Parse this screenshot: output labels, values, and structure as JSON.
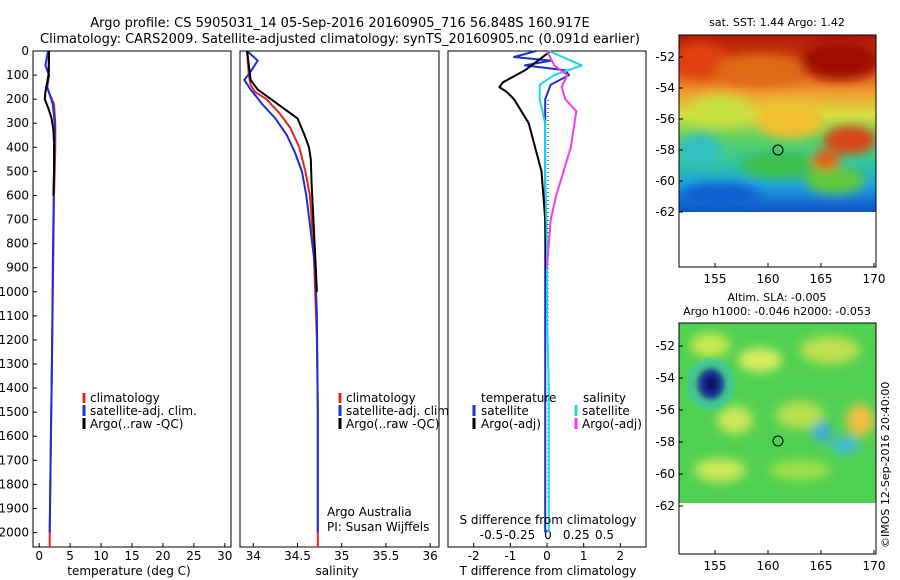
{
  "title": {
    "line1": "Argo profile: CS 5905031_14 05-Sep-2016 20160905_716 56.848S 160.917E",
    "line2": "Climatology: CARS2009. Satellite-adjusted climatology: synTS_20160905.nc (0.091d earlier)"
  },
  "colors": {
    "climatology": "#e8241c",
    "satellite": "#1a2fd6",
    "argo": "#000000",
    "salinity_satellite": "#19d8e0",
    "salinity_argo": "#f03cf0"
  },
  "depth_ticks": [
    0,
    100,
    200,
    300,
    400,
    500,
    600,
    700,
    800,
    900,
    1000,
    1100,
    1200,
    1300,
    1400,
    1500,
    1600,
    1700,
    1800,
    1900,
    2000
  ],
  "temp_ticks": [
    "0",
    "5",
    "10",
    "15",
    "20",
    "25",
    "30"
  ],
  "sal_ticks": [
    "34",
    "34.5",
    "35",
    "35.5",
    "36"
  ],
  "diff_top_ticks": [
    "-0.5",
    "-0.25",
    "0",
    "0.25",
    "0.5"
  ],
  "diff_bottom_ticks": [
    "-2",
    "-1",
    "0",
    "1",
    "2"
  ],
  "legend1": [
    "climatology",
    "satellite-adj. clim.",
    "Argo(..raw -QC)"
  ],
  "legend3": {
    "temp_head": "temperature",
    "sal_head": "salinity",
    "satellite": "satellite",
    "argo_adj": "Argo(-adj)"
  },
  "labels": {
    "temperature": "temperature (deg C)",
    "salinity": "salinity",
    "s_diff": "S difference from climatology",
    "t_diff": "T difference from climatology",
    "argo_aus": "Argo Australia",
    "pi": "PI: Susan Wijffels"
  },
  "map1": {
    "title": "sat. SST: 1.44  Argo: 1.42",
    "lat_ticks": [
      "-52",
      "-54",
      "-56",
      "-58",
      "-60",
      "-62"
    ],
    "lon_ticks": [
      "155",
      "160",
      "165",
      "170"
    ]
  },
  "map2": {
    "title1": "Altim. SLA: -0.005",
    "title2": "Argo h1000: -0.046  h2000: -0.053",
    "lat_ticks": [
      "-52",
      "-54",
      "-56",
      "-58",
      "-60",
      "-62"
    ],
    "lon_ticks": [
      "155",
      "160",
      "165",
      "170"
    ]
  },
  "credit": "©IMOS 12-Sep-2016 20:40:00",
  "chart_data": [
    {
      "type": "line",
      "xlabel": "temperature (deg C)",
      "ylabel": "",
      "xlim": [
        -1,
        31
      ],
      "ylim": [
        2060,
        0
      ],
      "y_reversed": true,
      "series": [
        {
          "name": "climatology",
          "x": [
            1.5,
            1.6,
            1.2,
            2.4,
            2.6,
            2.6,
            2.5,
            2.4,
            2.3,
            2.2,
            2.1,
            2.0,
            1.9,
            1.8,
            1.7,
            1.7
          ],
          "y": [
            0,
            80,
            150,
            220,
            300,
            400,
            500,
            600,
            800,
            1000,
            1200,
            1400,
            1600,
            1800,
            2000,
            2060
          ]
        },
        {
          "name": "satellite-adj. clim.",
          "x": [
            1.4,
            1.0,
            1.6,
            1.3,
            2.2,
            2.5,
            2.5,
            2.4,
            2.3,
            2.2,
            2.1,
            2.0,
            1.9,
            1.8,
            1.7
          ],
          "y": [
            0,
            60,
            100,
            150,
            220,
            300,
            400,
            500,
            700,
            900,
            1200,
            1400,
            1600,
            1800,
            2000
          ]
        },
        {
          "name": "Argo(..raw -QC)",
          "x": [
            1.6,
            1.5,
            1.0,
            0.9,
            1.5,
            2.0,
            2.3,
            2.4,
            2.4,
            2.3
          ],
          "y": [
            0,
            100,
            170,
            200,
            240,
            280,
            330,
            380,
            500,
            600
          ]
        }
      ]
    },
    {
      "type": "line",
      "xlabel": "salinity",
      "ylabel": "",
      "xlim": [
        33.85,
        36.1
      ],
      "ylim": [
        2060,
        0
      ],
      "y_reversed": true,
      "series": [
        {
          "name": "climatology",
          "x": [
            33.93,
            33.95,
            33.97,
            34.02,
            34.15,
            34.3,
            34.42,
            34.52,
            34.59,
            34.64,
            34.68,
            34.7,
            34.72,
            34.73,
            34.73,
            34.73
          ],
          "y": [
            0,
            100,
            140,
            170,
            200,
            260,
            320,
            400,
            500,
            600,
            800,
            1000,
            1200,
            1500,
            1800,
            2060
          ]
        },
        {
          "name": "satellite-adj. clim.",
          "x": [
            33.93,
            34.05,
            33.98,
            33.9,
            33.97,
            34.1,
            34.25,
            34.38,
            34.47,
            34.55,
            34.6,
            34.65,
            34.7,
            34.72,
            34.73,
            34.73
          ],
          "y": [
            0,
            40,
            80,
            120,
            160,
            220,
            280,
            350,
            420,
            500,
            600,
            750,
            900,
            1100,
            1500,
            2000
          ]
        },
        {
          "name": "Argo(..raw -QC)",
          "x": [
            33.93,
            33.97,
            34.05,
            34.2,
            34.35,
            34.5,
            34.58,
            34.63,
            34.65,
            34.66,
            34.68,
            34.7,
            34.72
          ],
          "y": [
            0,
            120,
            160,
            200,
            240,
            280,
            350,
            400,
            450,
            550,
            700,
            850,
            1000
          ]
        }
      ]
    },
    {
      "type": "line",
      "xlabel": "T difference from climatology",
      "ylabel": "",
      "xlim": [
        -2.7,
        2.7
      ],
      "ylim": [
        2060,
        0
      ],
      "y_reversed": true,
      "series": [
        {
          "name": "temperature satellite",
          "x": [
            -0.3,
            -0.9,
            0.1,
            -0.6,
            0.5,
            0.6,
            0.1,
            -0.05,
            -0.05,
            -0.05,
            -0.05,
            -0.05,
            -0.05,
            -0.05
          ],
          "y": [
            0,
            25,
            40,
            60,
            80,
            100,
            140,
            200,
            300,
            500,
            800,
            1200,
            1600,
            2000
          ]
        },
        {
          "name": "temperature Argo(-adj)",
          "x": [
            0.1,
            -0.6,
            -1.2,
            -1.3,
            -1.1,
            -0.9,
            -0.5,
            -0.15,
            -0.05,
            0.0
          ],
          "y": [
            0,
            80,
            130,
            150,
            170,
            200,
            300,
            500,
            700,
            1000
          ]
        },
        {
          "name": "salinity satellite",
          "x": [
            0.05,
            0.5,
            0.95,
            0.2,
            -0.2,
            -0.2,
            -0.05,
            -0.05,
            0.0,
            0.0,
            0.05,
            0.05,
            0.05
          ],
          "y": [
            0,
            30,
            60,
            100,
            140,
            200,
            300,
            500,
            800,
            1100,
            1400,
            1700,
            2000
          ]
        },
        {
          "name": "salinity Argo(-adj)",
          "x": [
            0.0,
            0.2,
            0.55,
            0.4,
            0.5,
            0.8,
            0.75,
            0.65,
            0.45,
            0.25,
            0.1,
            0.05,
            0.0
          ],
          "y": [
            0,
            60,
            100,
            150,
            200,
            250,
            300,
            400,
            500,
            600,
            700,
            800,
            900
          ]
        }
      ]
    }
  ]
}
